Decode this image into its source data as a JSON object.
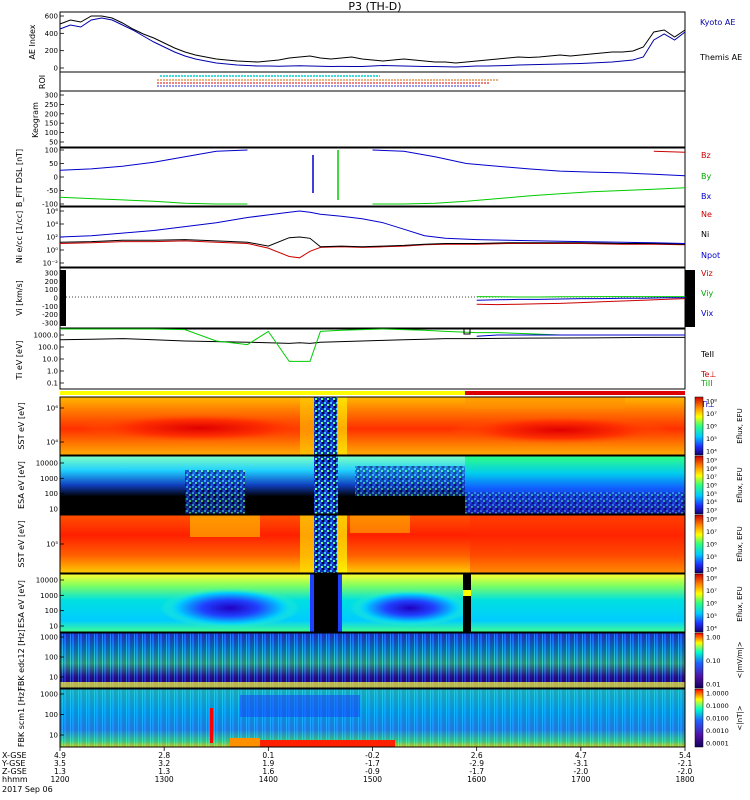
{
  "title": "P3 (TH-D)",
  "colors": {
    "red": "#cc0000",
    "green": "#00cc00",
    "blue": "#0000cc",
    "black": "#000000",
    "kyoto": "#0000aa",
    "themis": "#000000",
    "ssa_yellow": "#ffff00"
  },
  "chart_data": [
    {
      "type": "line",
      "panel": "AE",
      "ylabel": "AE Index",
      "yticks": [
        "600",
        "400",
        "200",
        "0"
      ],
      "ylim": [
        0,
        600
      ],
      "x": [
        1200,
        1210,
        1220,
        1230,
        1240,
        1250,
        1260,
        1270,
        1280,
        1290,
        1300,
        1310,
        1320,
        1330,
        1340,
        1350,
        1360,
        1370,
        1380,
        1390,
        1400,
        1410,
        1420,
        1430,
        1440,
        1450,
        1460,
        1470,
        1480,
        1490,
        1500,
        1510,
        1520,
        1530,
        1540,
        1550,
        1560,
        1570,
        1580,
        1590,
        1600,
        1610,
        1620,
        1630,
        1640,
        1650,
        1660,
        1670,
        1680,
        1690,
        1700,
        1710,
        1720,
        1730,
        1740,
        1750,
        1760,
        1770,
        1780,
        1790,
        1800
      ],
      "series": [
        {
          "name": "Kyoto AE",
          "color": "#0000aa",
          "values": [
            430,
            470,
            450,
            520,
            540,
            520,
            470,
            420,
            360,
            300,
            250,
            200,
            160,
            130,
            110,
            90,
            80,
            70,
            65,
            60,
            60,
            58,
            60,
            62,
            60,
            58,
            55,
            56,
            55,
            55,
            60,
            65,
            62,
            60,
            58,
            55,
            55,
            52,
            50,
            55,
            60,
            60,
            62,
            65,
            70,
            72,
            75,
            78,
            80,
            82,
            85,
            90,
            95,
            100,
            110,
            120,
            150,
            320,
            380,
            320,
            400
          ]
        },
        {
          "name": "Themis AE",
          "color": "#000000",
          "values": [
            480,
            520,
            500,
            560,
            560,
            540,
            490,
            430,
            380,
            340,
            290,
            240,
            200,
            170,
            150,
            130,
            120,
            110,
            105,
            100,
            110,
            120,
            140,
            150,
            160,
            140,
            130,
            140,
            150,
            130,
            120,
            110,
            120,
            130,
            120,
            110,
            100,
            100,
            90,
            100,
            110,
            120,
            130,
            140,
            150,
            145,
            150,
            160,
            170,
            160,
            170,
            180,
            190,
            200,
            200,
            210,
            250,
            400,
            420,
            350,
            420
          ]
        }
      ]
    },
    {
      "type": "line",
      "panel": "B_FIT",
      "ylabel": "B_FIT DSL [nT]",
      "yticks": [
        "100",
        "50",
        "0",
        "-50",
        "-100"
      ],
      "ylim": [
        -100,
        100
      ],
      "x": [
        1200,
        1230,
        1260,
        1290,
        1320,
        1350,
        1380,
        1400,
        1420,
        1440,
        1460,
        1480,
        1500,
        1530,
        1560,
        1590,
        1620,
        1650,
        1680,
        1710,
        1740,
        1770,
        1800
      ],
      "series": [
        {
          "name": "Bz",
          "color": "#cc0000",
          "values": [
            null,
            null,
            null,
            null,
            null,
            null,
            null,
            null,
            null,
            null,
            null,
            null,
            null,
            null,
            null,
            null,
            null,
            null,
            null,
            null,
            null,
            95,
            92
          ]
        },
        {
          "name": "By",
          "color": "#00cc00",
          "values": [
            -75,
            -80,
            -85,
            -90,
            -97,
            -100,
            -100,
            null,
            null,
            null,
            null,
            null,
            -100,
            -100,
            -97,
            -90,
            -80,
            -70,
            -62,
            -55,
            -50,
            -45,
            -40
          ]
        },
        {
          "name": "Bx",
          "color": "#0000cc",
          "values": [
            25,
            30,
            40,
            55,
            75,
            95,
            100,
            null,
            null,
            null,
            null,
            null,
            100,
            95,
            75,
            50,
            40,
            30,
            22,
            18,
            15,
            10,
            5
          ]
        }
      ]
    },
    {
      "type": "line",
      "panel": "Ni",
      "ylabel": "Ni e/cc [1/cc]",
      "yticks": [
        "10⁶",
        "10⁴",
        "10²",
        "10⁰",
        "10⁻²"
      ],
      "x": [
        1200,
        1230,
        1260,
        1290,
        1320,
        1350,
        1380,
        1400,
        1420,
        1430,
        1440,
        1450,
        1470,
        1490,
        1510,
        1530,
        1550,
        1570,
        1600,
        1630,
        1660,
        1700,
        1740,
        1770,
        1800
      ],
      "series": [
        {
          "name": "Ne",
          "color": "#cc0000",
          "values": [
            1.0,
            1.1,
            1.3,
            1.3,
            1.4,
            1.2,
            1.0,
            0.3,
            -1.0,
            -1.2,
            -0.2,
            0.4,
            0.5,
            0.4,
            0.5,
            0.6,
            0.8,
            0.9,
            0.9,
            1.0,
            1.0,
            1.0,
            0.9,
            0.9,
            0.8
          ]
        },
        {
          "name": "Ni",
          "color": "#000000",
          "values": [
            1.2,
            1.3,
            1.5,
            1.5,
            1.6,
            1.4,
            1.2,
            0.6,
            1.9,
            2.0,
            1.8,
            0.5,
            0.6,
            0.5,
            0.6,
            0.7,
            0.9,
            1.0,
            1.0,
            1.1,
            1.1,
            1.1,
            1.0,
            1.0,
            0.9
          ]
        },
        {
          "name": "Npot",
          "color": "#0000cc",
          "values": [
            2.0,
            2.2,
            2.6,
            3.0,
            3.6,
            4.2,
            5.0,
            5.4,
            5.8,
            6.0,
            5.8,
            5.5,
            5.2,
            4.8,
            4.2,
            3.2,
            2.2,
            1.8,
            1.6,
            1.5,
            1.4,
            1.3,
            1.2,
            1.1,
            1.0
          ]
        }
      ]
    },
    {
      "type": "line",
      "panel": "Vi",
      "ylabel": "Vi [km/s]",
      "yticks": [
        "300",
        "200",
        "100",
        "0",
        "-100",
        "-200",
        "-300"
      ],
      "ylim": [
        -350,
        350
      ],
      "x": [
        1600,
        1620,
        1640,
        1660,
        1680,
        1700,
        1720,
        1740,
        1760,
        1780,
        1800
      ],
      "series": [
        {
          "name": "Viz",
          "color": "#cc0000",
          "values": [
            -90,
            -95,
            -90,
            -85,
            -80,
            -70,
            -60,
            -50,
            -40,
            -30,
            -20
          ]
        },
        {
          "name": "Viy",
          "color": "#00cc00",
          "values": [
            5,
            2,
            0,
            0,
            2,
            3,
            5,
            5,
            5,
            5,
            5
          ]
        },
        {
          "name": "Vix",
          "color": "#0000cc",
          "values": [
            -40,
            -35,
            -30,
            -30,
            -25,
            -20,
            -20,
            -15,
            -15,
            -10,
            -10
          ]
        }
      ]
    },
    {
      "type": "line",
      "panel": "Ti",
      "ylabel": "Ti eV [eV]",
      "yticks": [
        "1000.0",
        "100.0",
        "10.0",
        "1.0",
        "0.1"
      ],
      "x": [
        1200,
        1230,
        1260,
        1290,
        1320,
        1350,
        1380,
        1400,
        1420,
        1430,
        1440,
        1450,
        1470,
        1490,
        1510,
        1530,
        1550,
        1570,
        1600,
        1620,
        1650,
        1680,
        1710,
        1740,
        1770,
        1800
      ],
      "series": [
        {
          "name": "TeII",
          "color": "#000000",
          "values": [
            2.6,
            2.65,
            2.7,
            2.6,
            2.5,
            2.45,
            2.4,
            2.35,
            2.3,
            2.35,
            2.3,
            2.4,
            2.45,
            2.5,
            2.55,
            2.6,
            2.65,
            2.7,
            2.7,
            2.72,
            2.74,
            2.75,
            2.76,
            2.78,
            2.8,
            2.8
          ]
        },
        {
          "name": "Te⊥",
          "color": "#cc0000",
          "values": [
            null,
            null,
            null,
            null,
            null,
            null,
            null,
            null,
            null,
            null,
            null,
            null,
            null,
            null,
            null,
            null,
            null,
            null,
            null,
            null,
            null,
            null,
            null,
            null,
            null,
            null
          ]
        },
        {
          "name": "TiII",
          "color": "#00cc00",
          "values": [
            3.5,
            3.5,
            3.5,
            3.5,
            3.45,
            2.5,
            2.2,
            3.3,
            0.8,
            0.8,
            0.8,
            3.3,
            3.4,
            3.45,
            3.5,
            3.45,
            3.4,
            3.3,
            3.2,
            3.2,
            3.1,
            3.0,
            3.0,
            3.0,
            3.0,
            3.0
          ]
        },
        {
          "name": "Ti⊥",
          "color": "#0000cc",
          "values": [
            null,
            null,
            null,
            null,
            null,
            null,
            null,
            null,
            null,
            null,
            null,
            null,
            null,
            null,
            null,
            null,
            null,
            null,
            2.9,
            3.0,
            3.0,
            3.0,
            3.0,
            3.0,
            3.0,
            3.0
          ]
        }
      ]
    },
    {
      "type": "heatmap",
      "panel": "SST_e",
      "ylabel": "SST eV [eV]",
      "yticks": [
        "10⁶",
        "10⁴"
      ],
      "colorbar_label": "Eflux, EFU",
      "colorbar_ticks": [
        "10⁸",
        "10⁷",
        "10⁶",
        "10⁵",
        "10⁴"
      ]
    },
    {
      "type": "heatmap",
      "panel": "ESA_e",
      "ylabel": "ESA eV [eV]",
      "yticks": [
        "10000",
        "1000",
        "100",
        "10"
      ],
      "colorbar_label": "Eflux, EFU",
      "colorbar_ticks": [
        "10⁹",
        "10⁸",
        "10⁷",
        "10⁶",
        "10⁵",
        "10⁴",
        "10³"
      ]
    },
    {
      "type": "heatmap",
      "panel": "SST_i",
      "ylabel": "SST eV [eV]",
      "yticks": [
        "10⁵"
      ],
      "colorbar_label": "Eflux, EFU",
      "colorbar_ticks": [
        "10⁸",
        "10⁷",
        "10⁶",
        "10⁵",
        "10⁴"
      ]
    },
    {
      "type": "heatmap",
      "panel": "ESA_i",
      "ylabel": "ESA eV [eV]",
      "yticks": [
        "10000",
        "1000",
        "100",
        "10"
      ],
      "colorbar_label": "Eflux, EFU",
      "colorbar_ticks": [
        "10⁸",
        "10⁷",
        "10⁶",
        "10⁵",
        "10⁴"
      ]
    },
    {
      "type": "heatmap",
      "panel": "FBK_E",
      "ylabel": "FBK edc12 [Hz]",
      "yticks": [
        "1000",
        "100",
        "10"
      ],
      "colorbar_label": "<|mV/m|>",
      "colorbar_ticks": [
        "1.00",
        "0.10",
        "0.01"
      ]
    },
    {
      "type": "heatmap",
      "panel": "FBK_B",
      "ylabel": "FBK scm1 [Hz]",
      "yticks": [
        "1000",
        "100",
        "10"
      ],
      "colorbar_label": "<|nT|>",
      "colorbar_ticks": [
        "1.0000",
        "0.1000",
        "0.0100",
        "0.0010",
        "0.0001"
      ]
    }
  ],
  "panels": {
    "roi_label": "ROI",
    "keogram_label": "Keogram",
    "keogram_ticks": [
      "300",
      "250",
      "200",
      "150",
      "100",
      "50"
    ]
  },
  "axis": {
    "row_labels": [
      "X-GSE",
      "Y-GSE",
      "Z-GSE",
      "hhmm",
      "2017 Sep 06"
    ],
    "columns": [
      {
        "lines": [
          "4.9",
          "3.5",
          "1.3",
          "1200"
        ]
      },
      {
        "lines": [
          "2.8",
          "3.2",
          "1.3",
          "1300"
        ]
      },
      {
        "lines": [
          "0.1",
          "1.9",
          "1.6",
          "1400"
        ]
      },
      {
        "lines": [
          "-0.2",
          "-1.7",
          "-0.9",
          "1500"
        ]
      },
      {
        "lines": [
          "2.6",
          "-2.9",
          "-1.7",
          "1600"
        ]
      },
      {
        "lines": [
          "4.7",
          "-3.1",
          "-2.0",
          "1700"
        ]
      },
      {
        "lines": [
          "5.4",
          "-2.1",
          "-2.0",
          "1800"
        ]
      }
    ]
  }
}
